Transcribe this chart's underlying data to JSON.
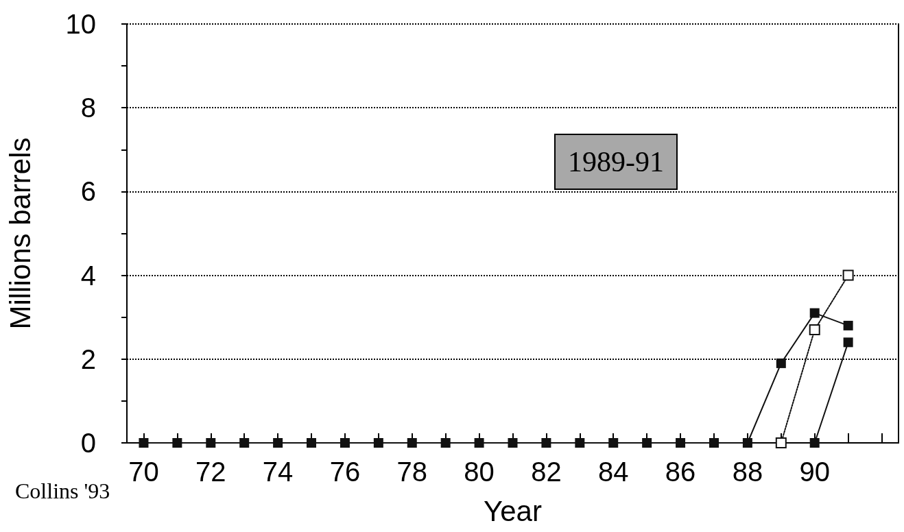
{
  "chart_data": {
    "type": "line",
    "xlabel": "Year",
    "ylabel": "Millions barrels",
    "marker": "square",
    "grid": "y",
    "xlim": [
      69.5,
      92.5
    ],
    "xticks": [
      70,
      {
        "value": 71,
        "label": null
      },
      72,
      {
        "value": 73,
        "label": null
      },
      74,
      {
        "value": 75,
        "label": null
      },
      76,
      {
        "value": 77,
        "label": null
      },
      78,
      {
        "value": 79,
        "label": null
      },
      80,
      {
        "value": 81,
        "label": null
      },
      82,
      {
        "value": 83,
        "label": null
      },
      84,
      {
        "value": 85,
        "label": null
      },
      86,
      {
        "value": 87,
        "label": null
      },
      88,
      {
        "value": 89,
        "label": null
      },
      90,
      {
        "value": 91,
        "label": null
      },
      {
        "value": 92,
        "label": null
      }
    ],
    "ylim": [
      0,
      10
    ],
    "yticks": [
      0,
      {
        "value": 1,
        "label": null
      },
      2,
      {
        "value": 3,
        "label": null
      },
      4,
      {
        "value": 5,
        "label": null
      },
      6,
      {
        "value": 7,
        "label": null
      },
      8,
      {
        "value": 9,
        "label": null
      },
      10
    ],
    "series": [
      {
        "color": "#111111",
        "line_style": "solid",
        "x": [
          70,
          71,
          72,
          73,
          74,
          75,
          76,
          77,
          78,
          79,
          80,
          81,
          82,
          83,
          84,
          85,
          86,
          87,
          88,
          89,
          90,
          91
        ],
        "values": [
          0,
          0,
          0,
          0,
          0,
          0,
          0,
          0,
          0,
          0,
          0,
          0,
          0,
          0,
          0,
          0,
          0,
          0,
          0,
          1.9,
          3.1,
          2.8
        ]
      },
      {
        "color": "#111111",
        "line_style": "dotted",
        "marker": "square-open",
        "x": [
          89,
          90,
          91
        ],
        "values": [
          0,
          2.7,
          4.0
        ]
      },
      {
        "color": "#111111",
        "line_style": "solid",
        "x": [
          90,
          91
        ],
        "values": [
          0,
          2.4
        ]
      }
    ],
    "annotations": [
      "1989-91",
      "Collins '93"
    ]
  }
}
